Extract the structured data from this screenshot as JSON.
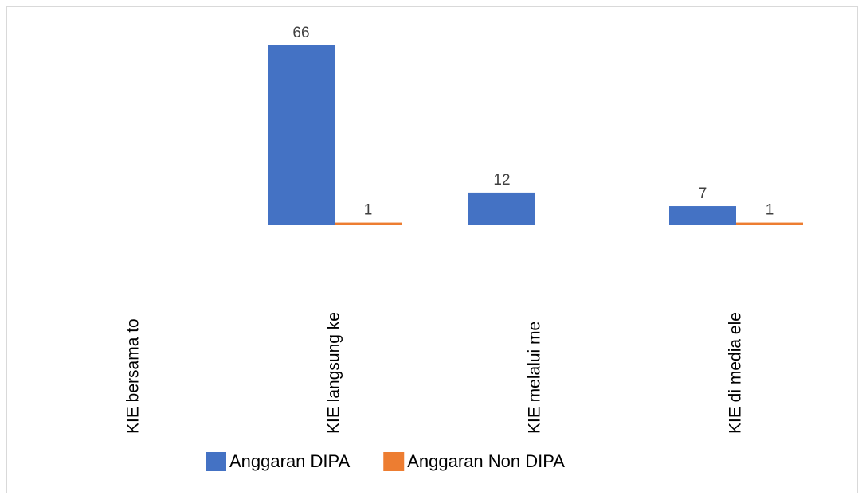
{
  "chart_data": {
    "type": "bar",
    "categories": [
      "KIE bersama to",
      "KIE langsung ke",
      "KIE melalui me",
      "KIE di media ele"
    ],
    "series": [
      {
        "name": "Anggaran DIPA",
        "color": "#4472c4",
        "values": [
          null,
          66,
          12,
          7
        ]
      },
      {
        "name": "Anggaran Non DIPA",
        "color": "#ed7d31",
        "values": [
          null,
          1,
          null,
          1
        ]
      }
    ],
    "legend": "bottom"
  }
}
